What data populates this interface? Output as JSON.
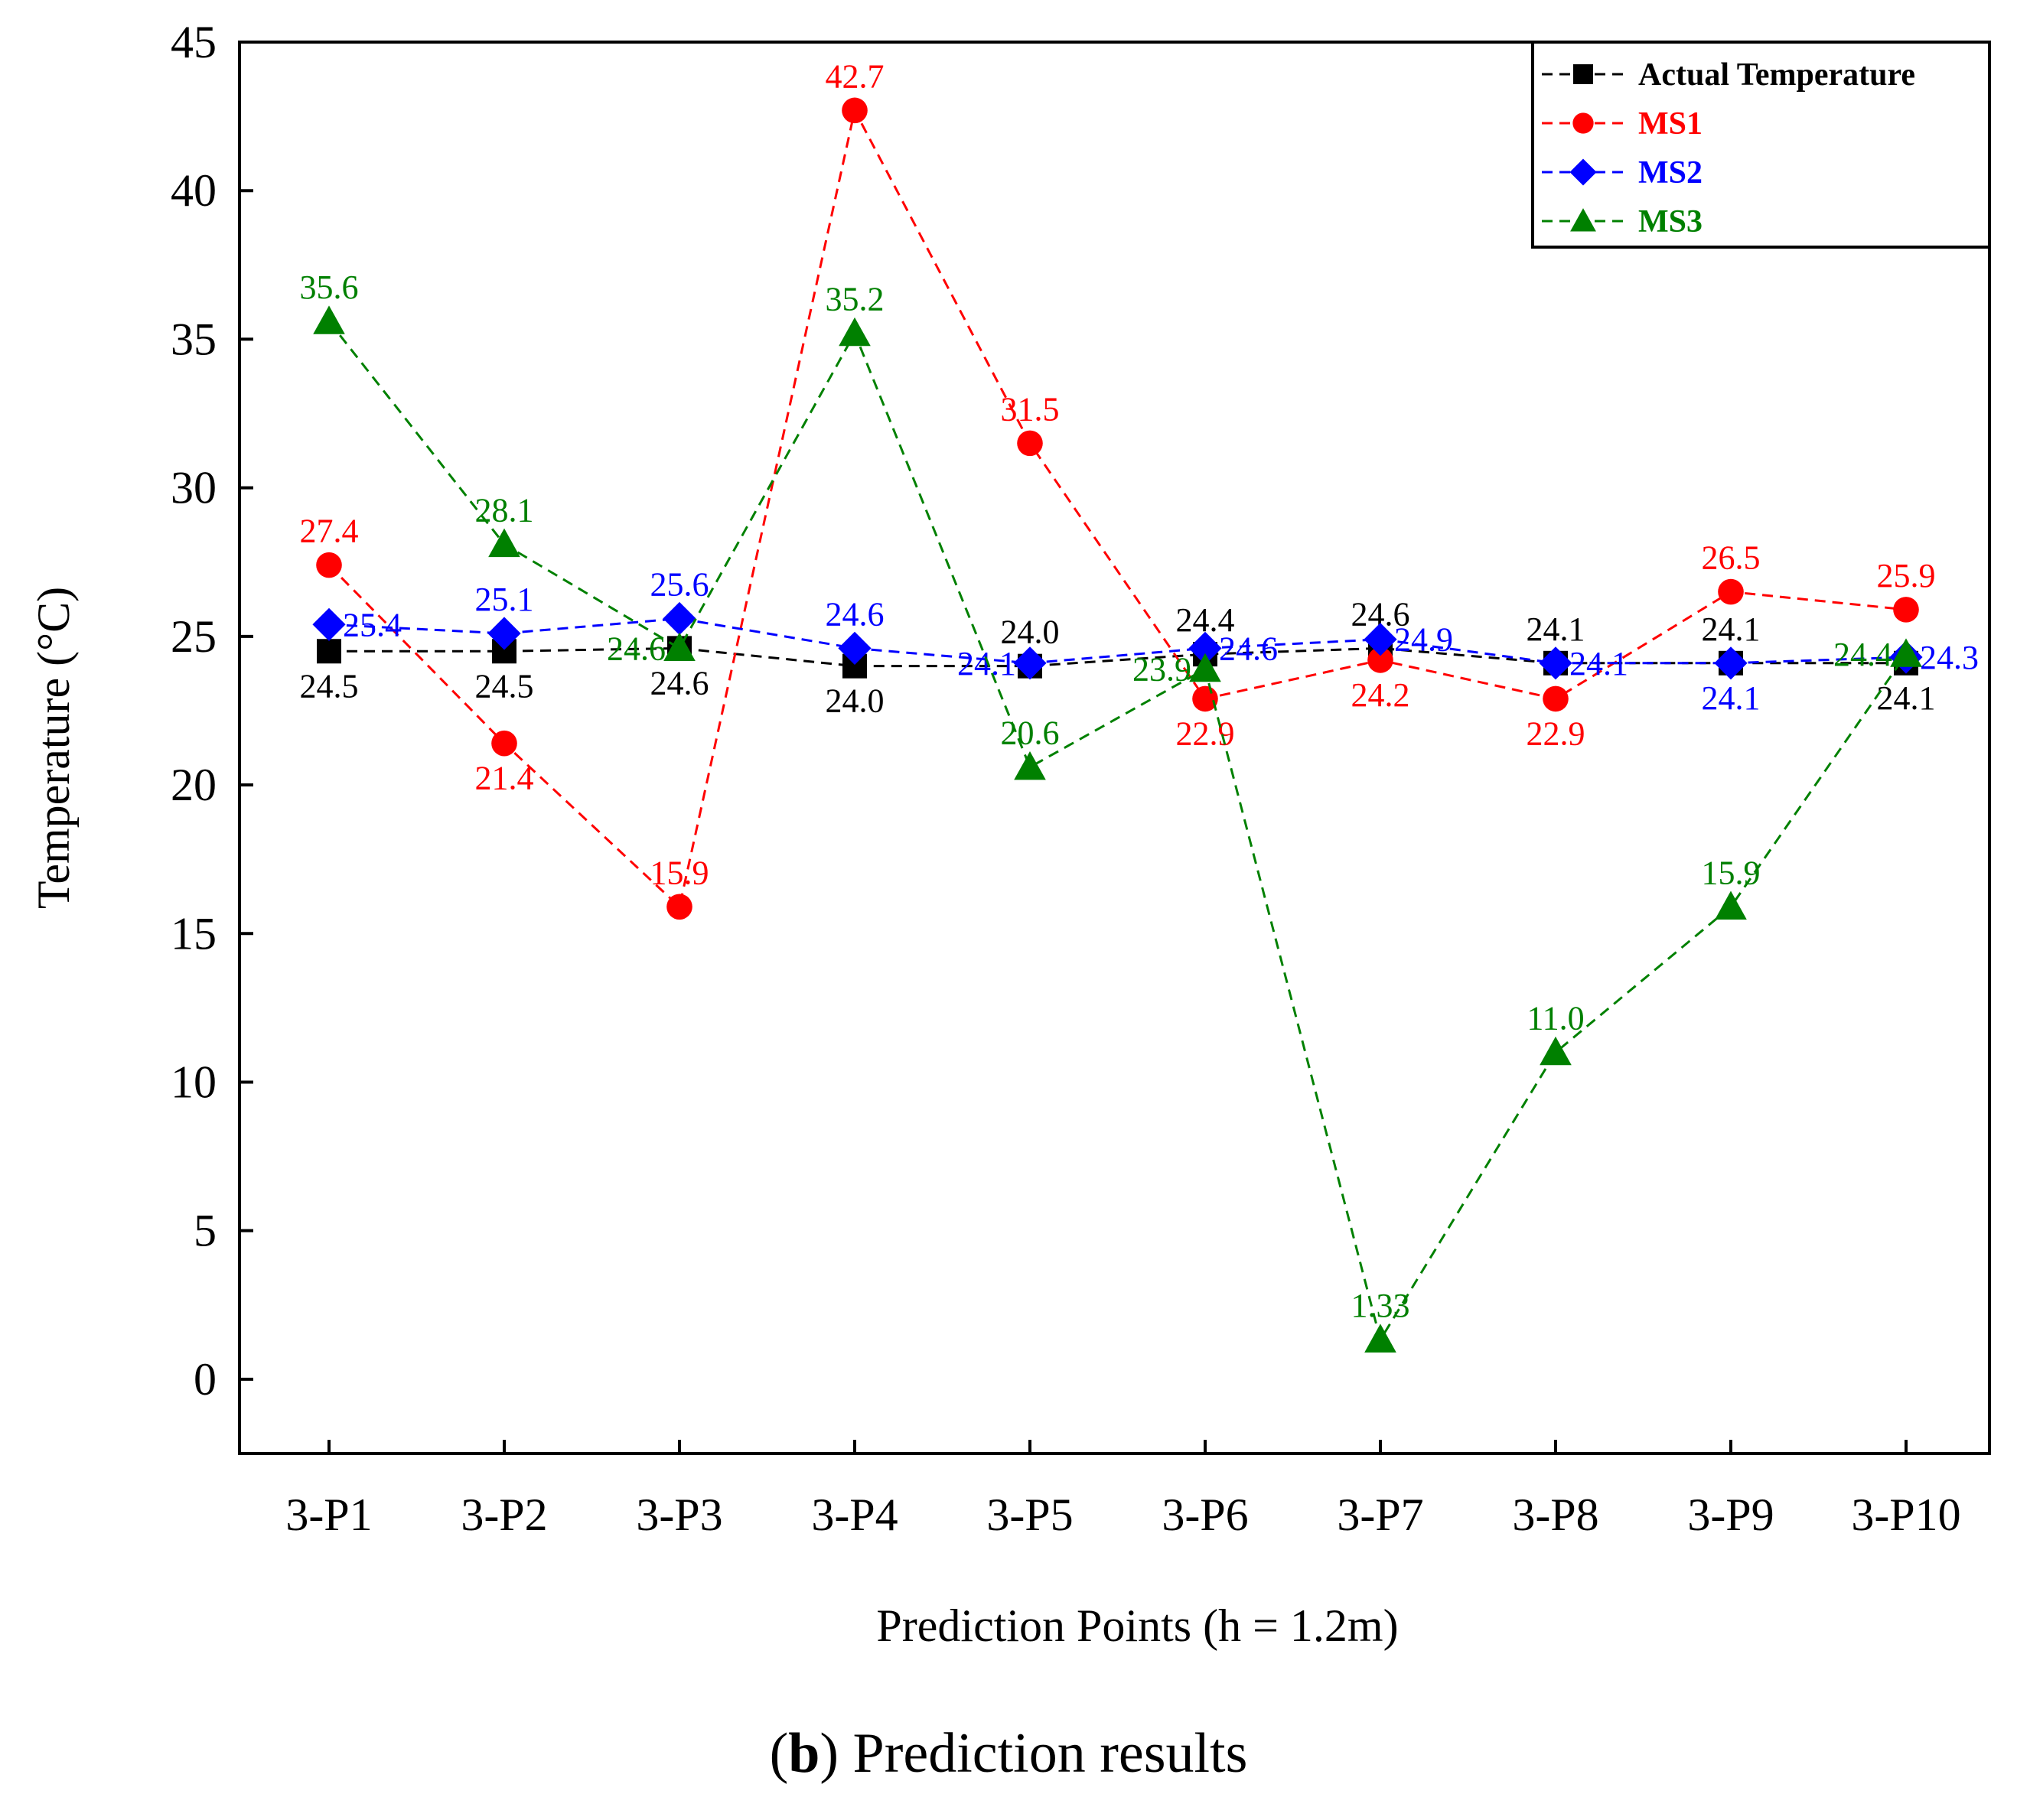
{
  "chart_data": {
    "type": "line",
    "title": "",
    "xlabel": "Prediction Points (h = 1.2m)",
    "ylabel": "Temperature (°C)",
    "ylim": [
      -2.5,
      45
    ],
    "yticks": [
      0,
      5,
      10,
      15,
      20,
      25,
      30,
      35,
      40,
      45
    ],
    "categories": [
      "3-P1",
      "3-P2",
      "3-P3",
      "3-P4",
      "3-P5",
      "3-P6",
      "3-P7",
      "3-P8",
      "3-P9",
      "3-P10"
    ],
    "legend_position": "top-right",
    "series": [
      {
        "name": "Actual Temperature",
        "color": "#000000",
        "marker": "square",
        "values": [
          24.5,
          24.5,
          24.6,
          24.0,
          24.0,
          24.4,
          24.6,
          24.1,
          24.1,
          24.1
        ],
        "labels": [
          "24.5",
          "24.5",
          "24.6",
          "24.0",
          "24.0",
          "24.4",
          "24.6",
          "24.1",
          "24.1",
          "24.1"
        ],
        "label_pos": [
          "below",
          "below",
          "below",
          "below",
          "above",
          "above",
          "above",
          "above",
          "above",
          "below"
        ]
      },
      {
        "name": "MS1",
        "color": "#ff0000",
        "marker": "circle",
        "values": [
          27.4,
          21.4,
          15.9,
          42.7,
          31.5,
          22.9,
          24.2,
          22.9,
          26.5,
          25.9
        ],
        "labels": [
          "27.4",
          "21.4",
          "15.9",
          "42.7",
          "31.5",
          "22.9",
          "24.2",
          "22.9",
          "26.5",
          "25.9"
        ],
        "label_pos": [
          "above",
          "below",
          "above",
          "above",
          "above",
          "below",
          "below",
          "below",
          "above",
          "above"
        ]
      },
      {
        "name": "MS2",
        "color": "#0000ff",
        "marker": "diamond",
        "values": [
          25.4,
          25.1,
          25.6,
          24.6,
          24.1,
          24.6,
          24.9,
          24.1,
          24.1,
          24.3
        ],
        "labels": [
          "25.4",
          "25.1",
          "25.6",
          "24.6",
          "24.1",
          "24.6",
          "24.9",
          "24.1",
          "24.1",
          "24.3"
        ],
        "label_pos": [
          "right",
          "above",
          "above",
          "above",
          "left",
          "right",
          "right",
          "right",
          "below",
          "right"
        ]
      },
      {
        "name": "MS3",
        "color": "#008000",
        "marker": "triangle",
        "values": [
          35.6,
          28.1,
          24.6,
          35.2,
          20.6,
          23.9,
          1.33,
          11.0,
          15.9,
          24.4
        ],
        "labels": [
          "35.6",
          "28.1",
          "24.6",
          "35.2",
          "20.6",
          "23.9",
          "1.33",
          "11.0",
          "15.9",
          "24.4"
        ],
        "label_pos": [
          "above",
          "above",
          "left",
          "above",
          "above",
          "left",
          "above",
          "above",
          "above",
          "left"
        ]
      }
    ]
  },
  "caption": {
    "letter": "b",
    "text": " Prediction results"
  }
}
